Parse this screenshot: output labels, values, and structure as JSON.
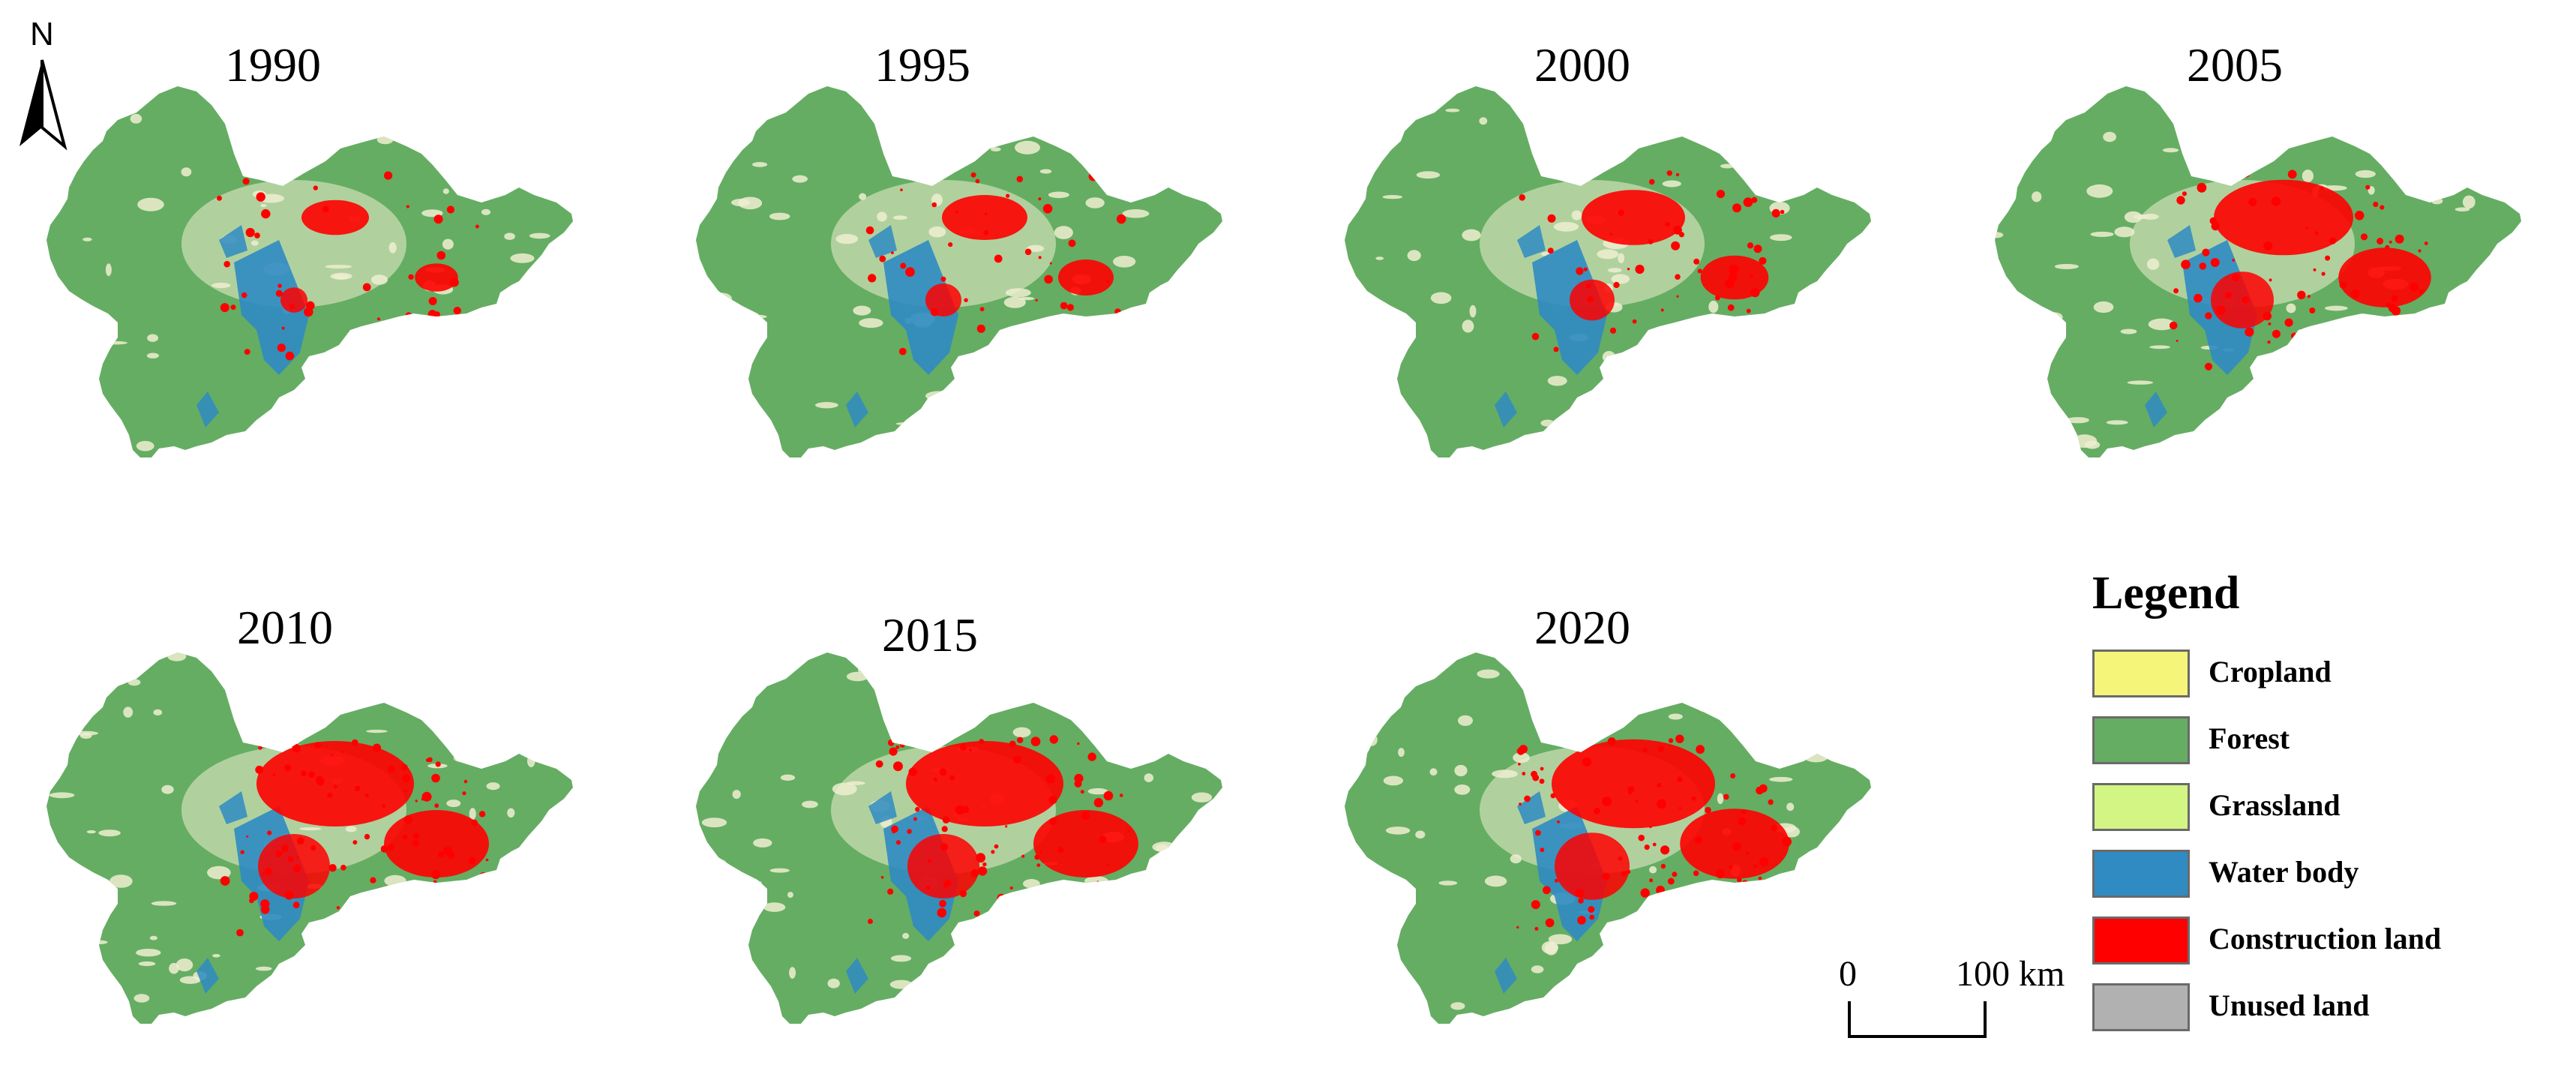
{
  "north_arrow": {
    "letter": "N"
  },
  "maps": [
    {
      "year": "1990"
    },
    {
      "year": "1995"
    },
    {
      "year": "2000"
    },
    {
      "year": "2005"
    },
    {
      "year": "2010"
    },
    {
      "year": "2015"
    },
    {
      "year": "2020"
    }
  ],
  "legend": {
    "title": "Legend",
    "items": [
      {
        "label": "Cropland",
        "color": "#f5f57a"
      },
      {
        "label": "Forest",
        "color": "#65ad63"
      },
      {
        "label": "Grassland",
        "color": "#d2f584"
      },
      {
        "label": "Water body",
        "color": "#2f8bc2"
      },
      {
        "label": "Construction land",
        "color": "#ff0000"
      },
      {
        "label": "Unused land",
        "color": "#b1b1b1"
      }
    ]
  },
  "scale_bar": {
    "start": "0",
    "end": "100 km"
  },
  "land_colors": {
    "forest": "#65ad63",
    "cropland_light": "#efeed0",
    "water": "#2f8bc2",
    "construction": "#ff0000"
  }
}
